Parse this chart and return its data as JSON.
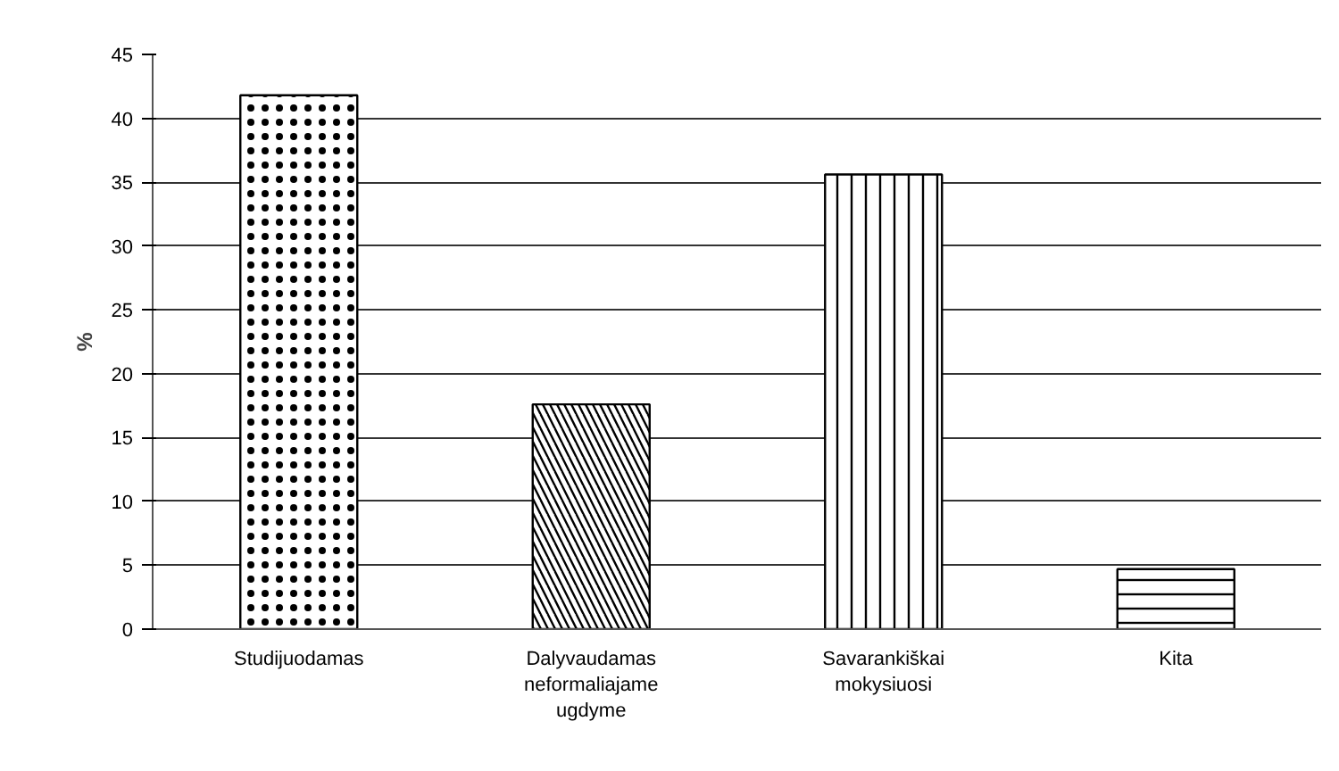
{
  "chart_data": {
    "type": "bar",
    "ylabel": "%",
    "categories": [
      "Studijuodamas",
      "Dalyvaudamas\nneformaliajame\nugdyme",
      "Savarankiškai\nmokysiuosi",
      "Kita"
    ],
    "values": [
      41.8,
      17.6,
      35.6,
      4.7
    ],
    "colors": [
      "#ffffff",
      "#ffffff",
      "#ffffff",
      "#ffffff"
    ],
    "ylim": [
      0,
      45
    ],
    "yticks": [
      0,
      5,
      10,
      15,
      20,
      25,
      30,
      35,
      40,
      45
    ],
    "grid": "y"
  }
}
